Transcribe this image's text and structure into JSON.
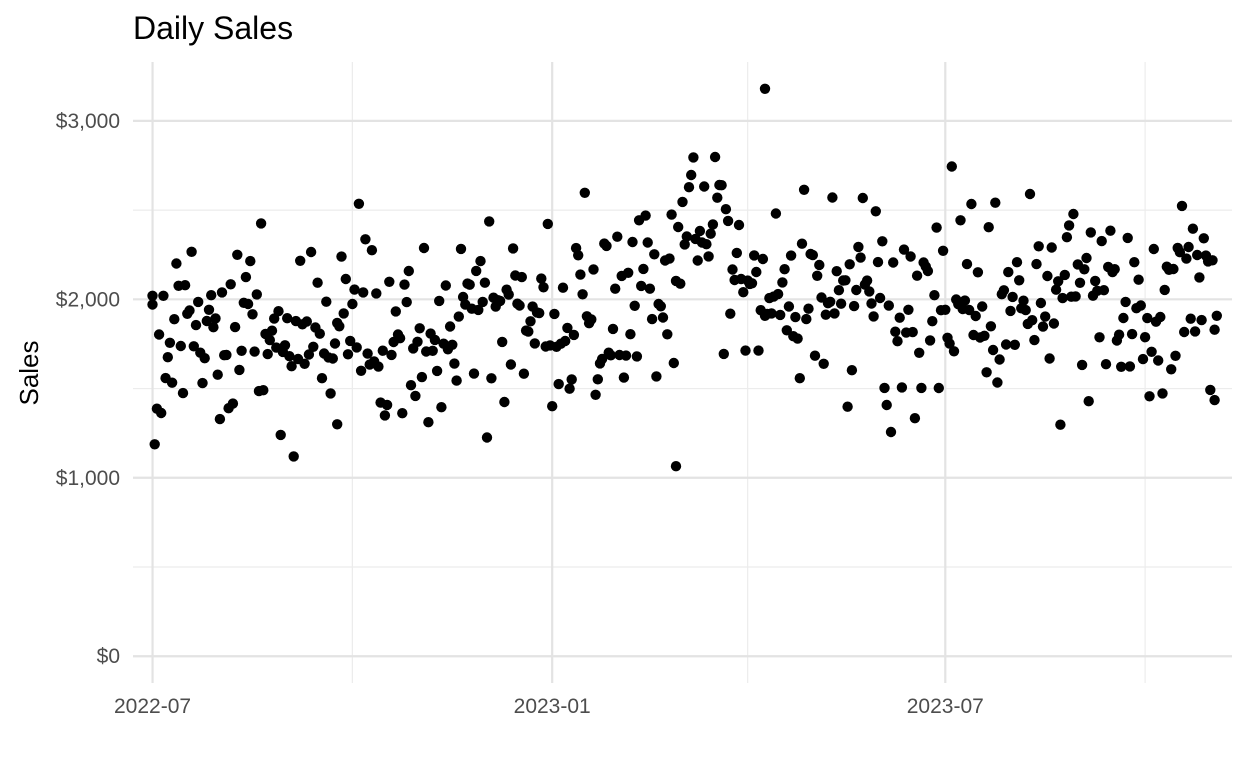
{
  "chart_data": {
    "type": "scatter",
    "title": "Daily Sales",
    "xlabel": "",
    "ylabel": "Sales",
    "x_ticks": [
      {
        "label": "2022-07",
        "date": "2022-07-01"
      },
      {
        "label": "2023-01",
        "date": "2023-01-01"
      },
      {
        "label": "2023-07",
        "date": "2023-07-01"
      }
    ],
    "x_minor_dates": [
      "2022-10-01",
      "2023-04-01",
      "2023-10-01"
    ],
    "y_ticks": [
      {
        "label": "$0",
        "value": 0
      },
      {
        "label": "$1,000",
        "value": 1000
      },
      {
        "label": "$2,000",
        "value": 2000
      },
      {
        "label": "$3,000",
        "value": 3000
      }
    ],
    "y_minor": [
      500,
      1500,
      2500
    ],
    "xlim": [
      "2022-06-22",
      "2023-11-10"
    ],
    "ylim": [
      -150,
      3330
    ],
    "grid": true,
    "point_color": "#000000",
    "sample_points": [
      {
        "x": "2022-07-01",
        "y": 2020
      },
      {
        "x": "2022-09-24",
        "y": 1300
      },
      {
        "x": "2023-02-27",
        "y": 1065
      },
      {
        "x": "2023-04-09",
        "y": 3180
      },
      {
        "x": "2023-11-02",
        "y": 1830
      }
    ]
  }
}
